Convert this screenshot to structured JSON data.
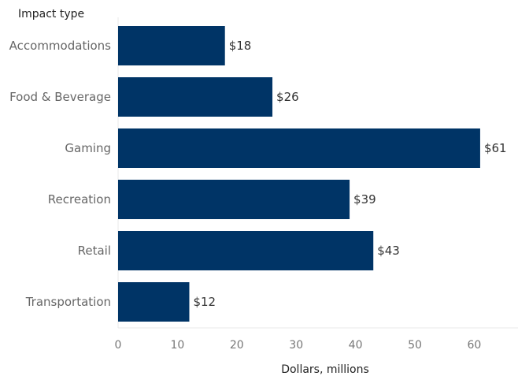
{
  "chart_data": {
    "type": "bar",
    "orientation": "horizontal",
    "row_header": "Impact type",
    "categories": [
      "Accommodations",
      "Food & Beverage",
      "Gaming",
      "Recreation",
      "Retail",
      "Transportation"
    ],
    "values": [
      18,
      26,
      61,
      39,
      43,
      12
    ],
    "data_labels": [
      "$18",
      "$26",
      "$61",
      "$39",
      "$43",
      "$12"
    ],
    "xlabel": "Dollars, millions",
    "x_ticks": [
      0,
      10,
      20,
      30,
      40,
      50,
      60
    ],
    "xlim": [
      0,
      66
    ],
    "grid": false,
    "colors": {
      "bar": "#003466"
    }
  }
}
